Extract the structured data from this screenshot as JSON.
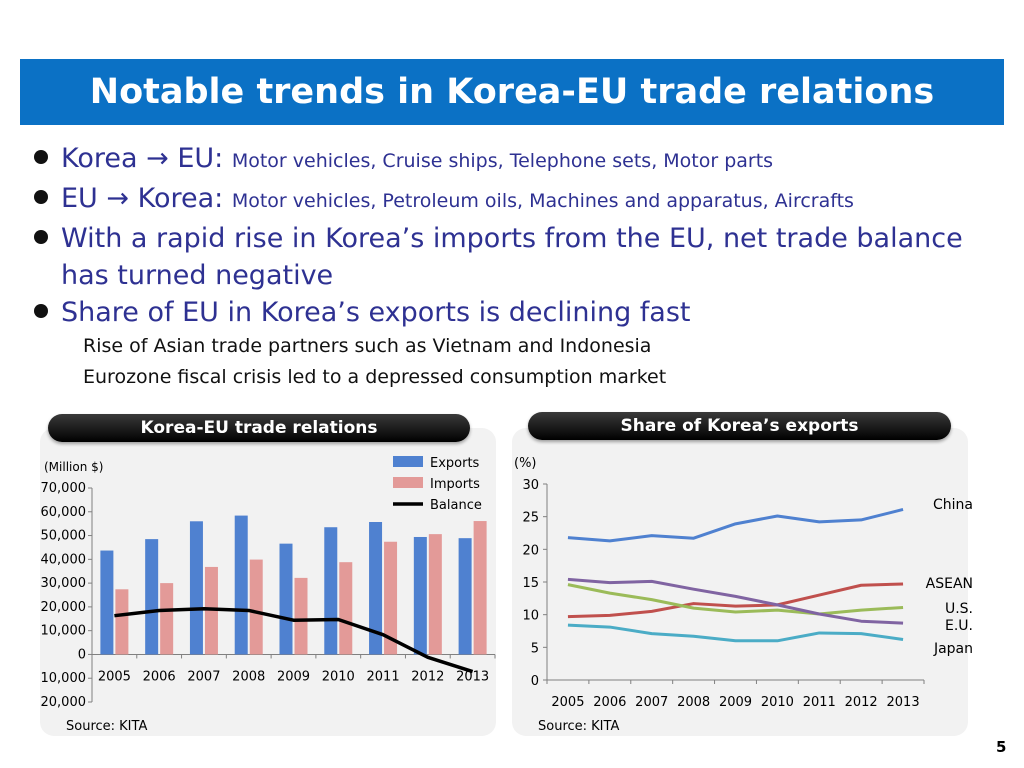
{
  "title": "Notable trends in Korea-EU trade relations",
  "bullets": [
    {
      "lead": "Korea → EU: ",
      "detail": "Motor vehicles, Cruise ships, Telephone sets, Motor parts"
    },
    {
      "lead": "EU → Korea: ",
      "detail": "Motor vehicles, Petroleum oils, Machines and apparatus, Aircrafts"
    },
    {
      "lead": "With a rapid rise in Korea’s imports from the EU, net trade balance has turned negative",
      "detail": ""
    },
    {
      "lead": "Share of EU in Korea’s exports is declining fast",
      "detail": ""
    }
  ],
  "sub_bullets": [
    "Rise of Asian trade partners such as Vietnam and Indonesia",
    "Eurozone fiscal crisis led to a depressed consumption market"
  ],
  "page_number": "5",
  "colors": {
    "title_bar": "#0b71c5",
    "text": "#2e3192"
  },
  "chart_data": [
    {
      "type": "bar",
      "title": "Korea-EU trade relations",
      "ylabel": "(Million $)",
      "source": "Source: KITA",
      "categories": [
        "2005",
        "2006",
        "2007",
        "2008",
        "2009",
        "2010",
        "2011",
        "2012",
        "2013"
      ],
      "ylim": [
        -20000,
        70000
      ],
      "yticks": [
        -20000,
        -10000,
        0,
        10000,
        20000,
        30000,
        40000,
        50000,
        60000,
        70000
      ],
      "ytick_labels": [
        "-20,000",
        "-10,000",
        "0",
        "10,000",
        "20,000",
        "30,000",
        "40,000",
        "50,000",
        "60,000",
        "70,000"
      ],
      "legend_position": "top-right",
      "series": [
        {
          "name": "Exports",
          "kind": "bar",
          "color": "#4f81d0",
          "values": [
            43700,
            48500,
            56000,
            58400,
            46600,
            53500,
            55700,
            49400,
            48900
          ]
        },
        {
          "name": "Imports",
          "kind": "bar",
          "color": "#e39a98",
          "values": [
            27400,
            30000,
            36800,
            39900,
            32200,
            38800,
            47400,
            50600,
            56100
          ]
        },
        {
          "name": "Balance",
          "kind": "line",
          "color": "#000000",
          "values": [
            16300,
            18500,
            19200,
            18500,
            14400,
            14700,
            8300,
            -1200,
            -7200
          ]
        }
      ]
    },
    {
      "type": "line",
      "title": "Share of Korea’s exports",
      "ylabel": "(%)",
      "source": "Source: KITA",
      "x": [
        "2005",
        "2006",
        "2007",
        "2008",
        "2009",
        "2010",
        "2011",
        "2012",
        "2013"
      ],
      "ylim": [
        0,
        30
      ],
      "yticks": [
        0,
        5,
        10,
        15,
        20,
        25,
        30
      ],
      "series": [
        {
          "name": "China",
          "color": "#4f81d0",
          "values": [
            21.8,
            21.3,
            22.1,
            21.7,
            23.9,
            25.1,
            24.2,
            24.5,
            26.1
          ]
        },
        {
          "name": "ASEAN",
          "color": "#c0504d",
          "values": [
            9.7,
            9.9,
            10.5,
            11.7,
            11.3,
            11.5,
            13.0,
            14.5,
            14.7
          ]
        },
        {
          "name": "U.S.",
          "color": "#9bbb59",
          "values": [
            14.6,
            13.3,
            12.3,
            11.0,
            10.4,
            10.7,
            10.1,
            10.7,
            11.1
          ]
        },
        {
          "name": "E.U.",
          "color": "#8064a2",
          "values": [
            15.4,
            14.9,
            15.1,
            13.9,
            12.8,
            11.5,
            10.1,
            9.0,
            8.7
          ]
        },
        {
          "name": "Japan",
          "color": "#4bacc6",
          "values": [
            8.4,
            8.1,
            7.1,
            6.7,
            6.0,
            6.0,
            7.2,
            7.1,
            6.2
          ]
        }
      ]
    }
  ]
}
